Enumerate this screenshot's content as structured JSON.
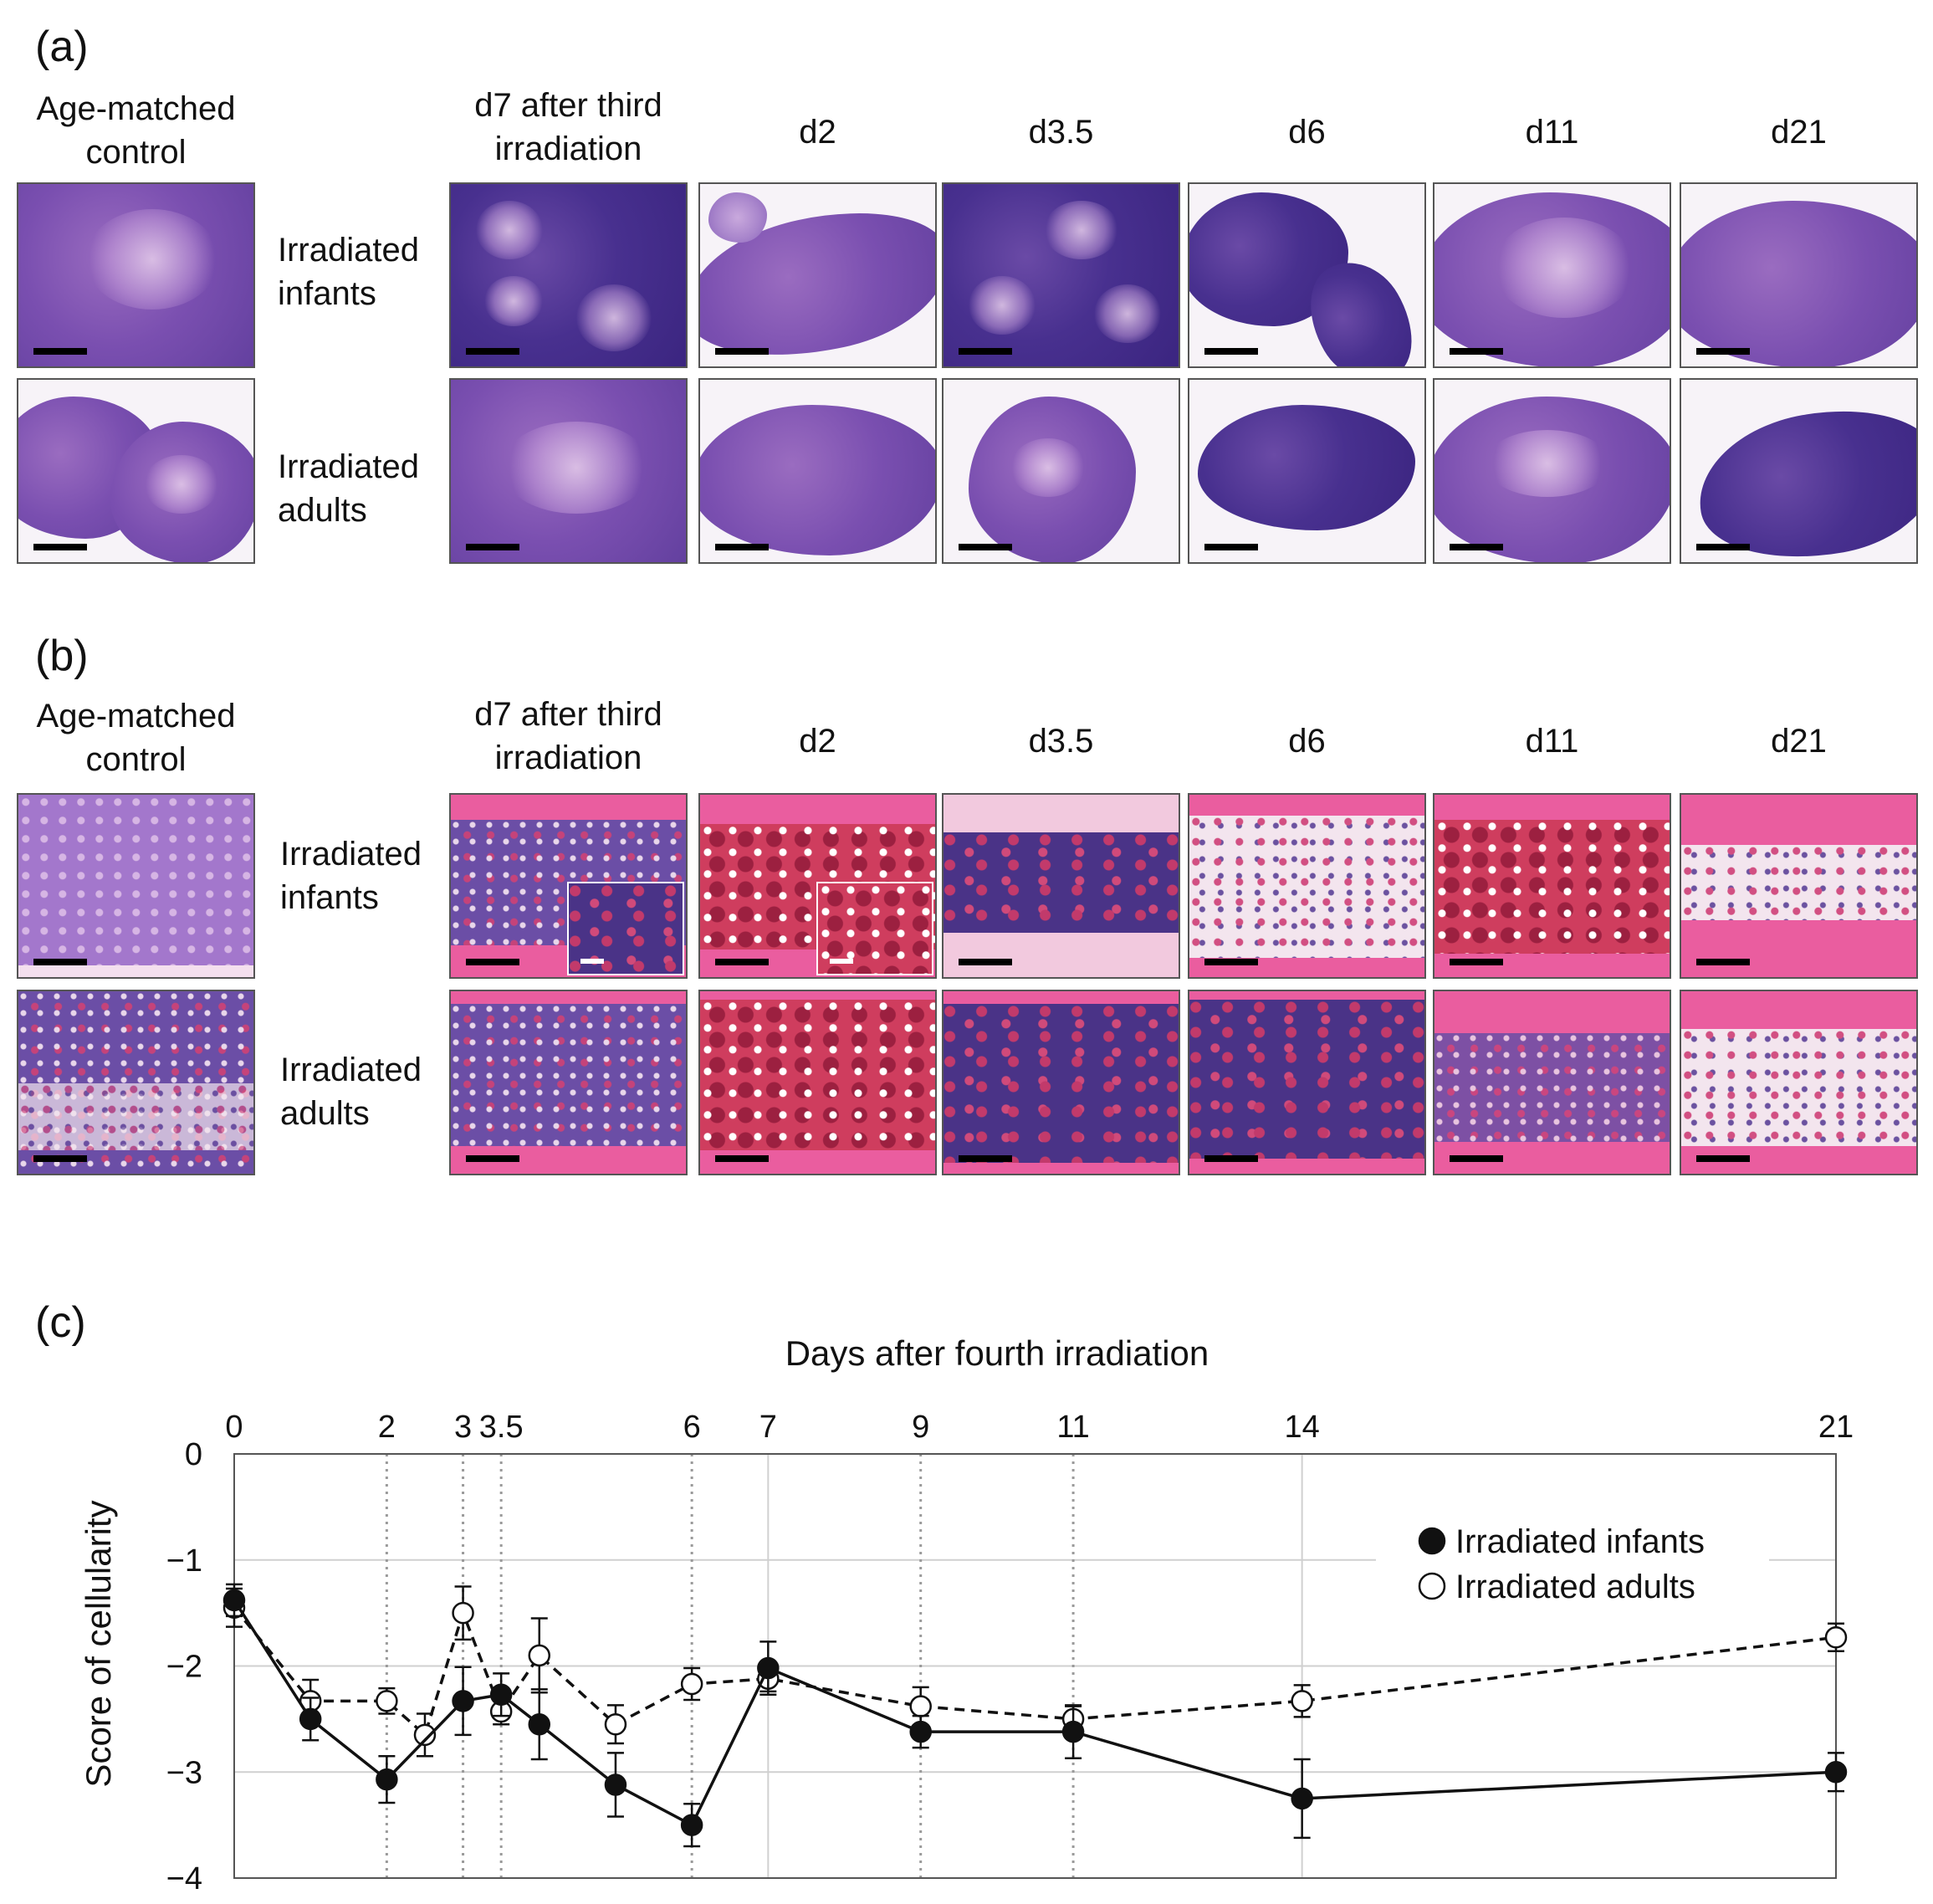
{
  "panel_a": {
    "label": "(a)",
    "control_heading": "Age-matched\ncontrol",
    "timepoint_headings": [
      "d7 after third\nirradiation",
      "d2",
      "d3.5",
      "d6",
      "d11",
      "d21"
    ],
    "row_labels": [
      "Irradiated\ninfants",
      "Irradiated\nadults"
    ]
  },
  "panel_b": {
    "label": "(b)",
    "control_heading": "Age-matched\ncontrol",
    "timepoint_headings": [
      "d7 after third\nirradiation",
      "d2",
      "d3.5",
      "d6",
      "d11",
      "d21"
    ],
    "row_labels": [
      "Irradiated\ninfants",
      "Irradiated\nadults"
    ]
  },
  "panel_c": {
    "label": "(c)",
    "chart_data": {
      "type": "line",
      "xlabel": "Days after fourth irradiation",
      "ylabel": "Score of cellularity",
      "xlim": [
        0,
        21
      ],
      "ylim": [
        -4,
        0
      ],
      "x_ticks": [
        0,
        2,
        3,
        3.5,
        6,
        7,
        9,
        11,
        14,
        21
      ],
      "x_tick_labels": [
        "0",
        "2",
        "3",
        "3.5",
        "6",
        "7",
        "9",
        "11",
        "14",
        "21"
      ],
      "y_ticks": [
        0,
        -1,
        -2,
        -3,
        -4
      ],
      "y_tick_labels": [
        "0",
        "−1",
        "−2",
        "−3",
        "−4"
      ],
      "dotted_vlines": [
        2,
        3,
        3.5,
        6,
        9,
        11
      ],
      "solid_vlines": [
        7,
        14
      ],
      "legend_position": "top-right",
      "series": [
        {
          "name": "Irradiated infants",
          "marker": "filled-circle",
          "line": "solid",
          "x": [
            0,
            1,
            2,
            3,
            3.5,
            4,
            5,
            6,
            7,
            9,
            11,
            14,
            21
          ],
          "y": [
            -1.38,
            -2.5,
            -3.07,
            -2.33,
            -2.27,
            -2.55,
            -3.12,
            -3.5,
            -2.02,
            -2.62,
            -2.62,
            -3.25,
            -3.0
          ],
          "err": [
            0.15,
            0.2,
            0.22,
            0.32,
            0.2,
            0.33,
            0.3,
            0.2,
            0.25,
            0.15,
            0.25,
            0.37,
            0.18
          ]
        },
        {
          "name": "Irradiated adults",
          "marker": "open-circle",
          "line": "dashed",
          "x": [
            0,
            1,
            2,
            2.5,
            3,
            3.5,
            4,
            5,
            6,
            7,
            9,
            11,
            14,
            21
          ],
          "y": [
            -1.45,
            -2.33,
            -2.33,
            -2.65,
            -1.5,
            -2.43,
            -1.9,
            -2.55,
            -2.17,
            -2.12,
            -2.38,
            -2.5,
            -2.33,
            -1.73
          ],
          "err": [
            0.18,
            0.2,
            0.12,
            0.2,
            0.25,
            0.12,
            0.35,
            0.18,
            0.15,
            0.12,
            0.18,
            0.12,
            0.15,
            0.13
          ]
        }
      ]
    }
  }
}
